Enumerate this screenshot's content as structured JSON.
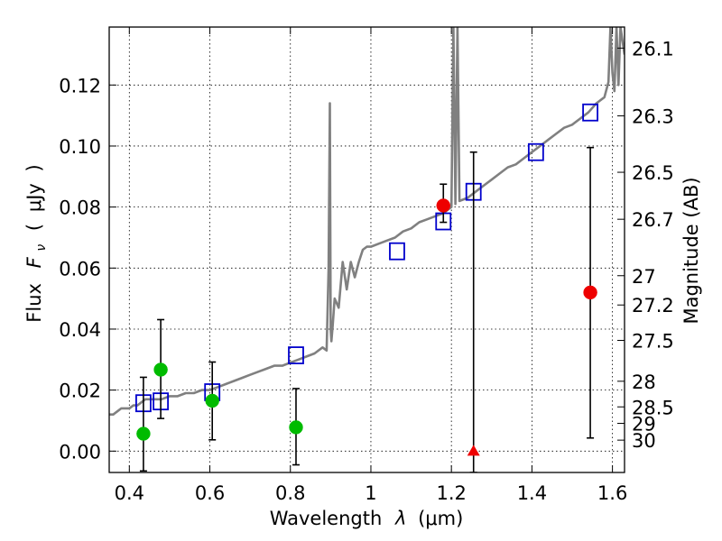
{
  "chart_data": {
    "type": "scatter",
    "xlabel_text": "Wavelength",
    "xlabel_symbol": "λ",
    "xlabel_unit": "(μm)",
    "ylabel_text": "Flux",
    "ylabel_symbol_main": "F",
    "ylabel_symbol_sub": "ν",
    "ylabel_unit_open": "(",
    "ylabel_unit": "μJy",
    "ylabel_unit_close": ")",
    "y2label": "Magnitude (AB)",
    "xlim": [
      0.35,
      1.63
    ],
    "ylim": [
      -0.007,
      0.139
    ],
    "grid": true,
    "x_ticks": [
      {
        "value": 0.4,
        "label": "0.4"
      },
      {
        "value": 0.6,
        "label": "0.6"
      },
      {
        "value": 0.8,
        "label": "0.8"
      },
      {
        "value": 1.0,
        "label": "1"
      },
      {
        "value": 1.2,
        "label": "1.2"
      },
      {
        "value": 1.4,
        "label": "1.4"
      },
      {
        "value": 1.6,
        "label": "1.6"
      }
    ],
    "y_ticks": [
      {
        "value": 0.0,
        "label": "0.00"
      },
      {
        "value": 0.02,
        "label": "0.02"
      },
      {
        "value": 0.04,
        "label": "0.04"
      },
      {
        "value": 0.06,
        "label": "0.06"
      },
      {
        "value": 0.08,
        "label": "0.08"
      },
      {
        "value": 0.1,
        "label": "0.10"
      },
      {
        "value": 0.12,
        "label": "0.12"
      }
    ],
    "magnitude_ticks": [
      {
        "flux": 0.1321,
        "label": "26.1"
      },
      {
        "flux": 0.1099,
        "label": "26.3"
      },
      {
        "flux": 0.0914,
        "label": "26.5"
      },
      {
        "flux": 0.076,
        "label": "26.7"
      },
      {
        "flux": 0.0575,
        "label": "27"
      },
      {
        "flux": 0.0479,
        "label": "27.2"
      },
      {
        "flux": 0.0363,
        "label": "27.5"
      },
      {
        "flux": 0.0229,
        "label": "28"
      },
      {
        "flux": 0.0145,
        "label": "28.5"
      },
      {
        "flux": 0.0091,
        "label": "29"
      },
      {
        "flux": 0.0036,
        "label": "30"
      }
    ],
    "series": [
      {
        "name": "SED model",
        "kind": "line",
        "color": "#808080",
        "x": [
          0.35,
          0.36,
          0.37,
          0.38,
          0.39,
          0.4,
          0.41,
          0.42,
          0.43,
          0.44,
          0.46,
          0.48,
          0.5,
          0.52,
          0.54,
          0.56,
          0.58,
          0.6,
          0.62,
          0.64,
          0.66,
          0.68,
          0.7,
          0.72,
          0.74,
          0.76,
          0.78,
          0.8,
          0.82,
          0.84,
          0.86,
          0.88,
          0.89,
          0.895,
          0.898,
          0.9,
          0.902,
          0.905,
          0.91,
          0.92,
          0.93,
          0.94,
          0.95,
          0.96,
          0.97,
          0.98,
          0.99,
          1.0,
          1.02,
          1.04,
          1.06,
          1.08,
          1.1,
          1.12,
          1.14,
          1.16,
          1.18,
          1.19,
          1.2,
          1.205,
          1.21,
          1.215,
          1.22,
          1.24,
          1.26,
          1.28,
          1.3,
          1.32,
          1.34,
          1.36,
          1.38,
          1.4,
          1.42,
          1.44,
          1.46,
          1.48,
          1.5,
          1.52,
          1.54,
          1.56,
          1.58,
          1.59,
          1.595,
          1.6,
          1.605,
          1.61,
          1.615,
          1.62,
          1.63
        ],
        "y": [
          0.012,
          0.012,
          0.013,
          0.014,
          0.014,
          0.014,
          0.015,
          0.015,
          0.016,
          0.017,
          0.017,
          0.017,
          0.018,
          0.018,
          0.019,
          0.019,
          0.02,
          0.02,
          0.021,
          0.022,
          0.023,
          0.024,
          0.025,
          0.026,
          0.027,
          0.028,
          0.028,
          0.029,
          0.03,
          0.031,
          0.032,
          0.034,
          0.033,
          0.06,
          0.114,
          0.04,
          0.036,
          0.041,
          0.05,
          0.047,
          0.062,
          0.053,
          0.062,
          0.057,
          0.062,
          0.066,
          0.067,
          0.067,
          0.068,
          0.069,
          0.07,
          0.072,
          0.073,
          0.075,
          0.076,
          0.077,
          0.078,
          0.079,
          0.08,
          0.139,
          0.081,
          0.139,
          0.082,
          0.083,
          0.085,
          0.087,
          0.089,
          0.091,
          0.093,
          0.094,
          0.096,
          0.098,
          0.1,
          0.102,
          0.104,
          0.106,
          0.107,
          0.109,
          0.111,
          0.114,
          0.116,
          0.121,
          0.139,
          0.124,
          0.118,
          0.139,
          0.12,
          0.139,
          0.13
        ]
      },
      {
        "name": "model photometry",
        "kind": "square",
        "color": "#0000cc",
        "points": [
          {
            "x": 0.435,
            "y": 0.0157
          },
          {
            "x": 0.478,
            "y": 0.0163
          },
          {
            "x": 0.606,
            "y": 0.0193
          },
          {
            "x": 0.814,
            "y": 0.0314
          },
          {
            "x": 1.065,
            "y": 0.0655
          },
          {
            "x": 1.18,
            "y": 0.0753
          },
          {
            "x": 1.255,
            "y": 0.085
          },
          {
            "x": 1.41,
            "y": 0.098
          },
          {
            "x": 1.545,
            "y": 0.111
          }
        ]
      },
      {
        "name": "optical detections",
        "kind": "circle",
        "color": "#00bb00",
        "points": [
          {
            "x": 0.435,
            "y": 0.0057,
            "yerr_low": 0.0122,
            "yerr_high": 0.0185
          },
          {
            "x": 0.478,
            "y": 0.0267,
            "yerr_low": 0.016,
            "yerr_high": 0.0164
          },
          {
            "x": 0.606,
            "y": 0.0165,
            "yerr_low": 0.0128,
            "yerr_high": 0.0127
          },
          {
            "x": 0.814,
            "y": 0.0078,
            "yerr_low": 0.0123,
            "yerr_high": 0.0127
          }
        ]
      },
      {
        "name": "near-IR detections",
        "kind": "circle",
        "color": "#ee0000",
        "points": [
          {
            "x": 1.18,
            "y": 0.0805,
            "yerr_low": 0.0055,
            "yerr_high": 0.007
          },
          {
            "x": 1.545,
            "y": 0.052,
            "yerr_low": 0.0477,
            "yerr_high": 0.0475
          }
        ]
      },
      {
        "name": "upper limit",
        "kind": "triangle",
        "color": "#ee0000",
        "points": [
          {
            "x": 1.255,
            "y": 0.0,
            "yerr_low": 0.007,
            "yerr_high": 0.098
          }
        ]
      }
    ]
  }
}
